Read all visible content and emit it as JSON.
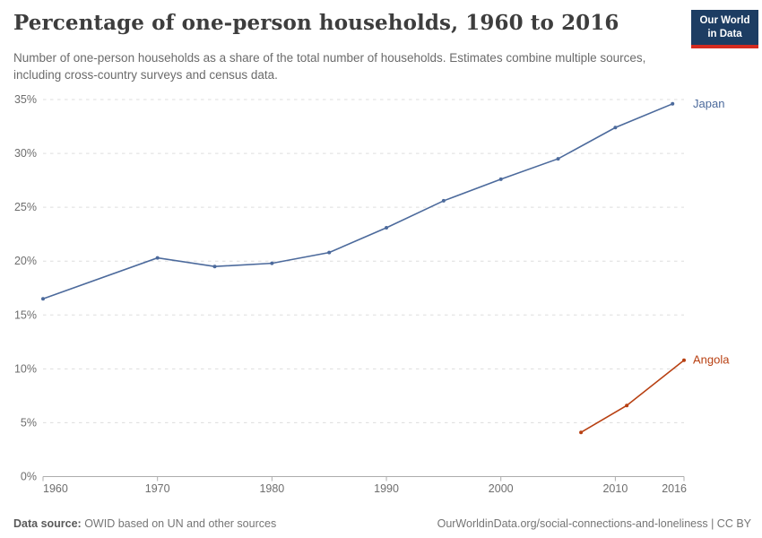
{
  "header": {
    "title": "Percentage of one-person households, 1960 to 2016",
    "subtitle": "Number of one-person households as a share of the total number of households. Estimates combine multiple sources, including cross-country surveys and census data.",
    "logo": {
      "line1": "Our World",
      "line2": "in Data",
      "bg_color": "#1d3d63",
      "accent_color": "#d52b20"
    }
  },
  "chart_data": {
    "type": "line",
    "title": "Percentage of one-person households, 1960 to 2016",
    "xlabel": "",
    "ylabel": "",
    "xlim": [
      1960,
      2016
    ],
    "ylim": [
      0,
      35
    ],
    "x_ticks": [
      1960,
      1970,
      1980,
      1990,
      2000,
      2010,
      2016
    ],
    "x_tick_labels": [
      "1960",
      "1970",
      "1980",
      "1990",
      "2000",
      "2010",
      "2016"
    ],
    "y_ticks": [
      0,
      5,
      10,
      15,
      20,
      25,
      30,
      35
    ],
    "y_tick_labels": [
      "0%",
      "5%",
      "10%",
      "15%",
      "20%",
      "25%",
      "30%",
      "35%"
    ],
    "grid": "horizontal-dashed",
    "legend_position": "line-end-labels",
    "series": [
      {
        "name": "Japan",
        "color": "#4c6a9c",
        "points": [
          [
            1960,
            16.5
          ],
          [
            1970,
            20.3
          ],
          [
            1975,
            19.5
          ],
          [
            1980,
            19.8
          ],
          [
            1985,
            20.8
          ],
          [
            1990,
            23.1
          ],
          [
            1995,
            25.6
          ],
          [
            2000,
            27.6
          ],
          [
            2005,
            29.5
          ],
          [
            2010,
            32.4
          ],
          [
            2015,
            34.6
          ]
        ]
      },
      {
        "name": "Angola",
        "color": "#b84012",
        "points": [
          [
            2007,
            4.1
          ],
          [
            2011,
            6.6
          ],
          [
            2016,
            10.8
          ]
        ]
      }
    ],
    "colors": {
      "grid": "#dddddd",
      "axis": "#adadad",
      "tick_label": "#6e6e6e"
    }
  },
  "footer": {
    "data_source_label": "Data source:",
    "data_source_value": " OWID based on UN and other sources",
    "link_text": "OurWorldinData.org/social-connections-and-loneliness | CC BY"
  }
}
